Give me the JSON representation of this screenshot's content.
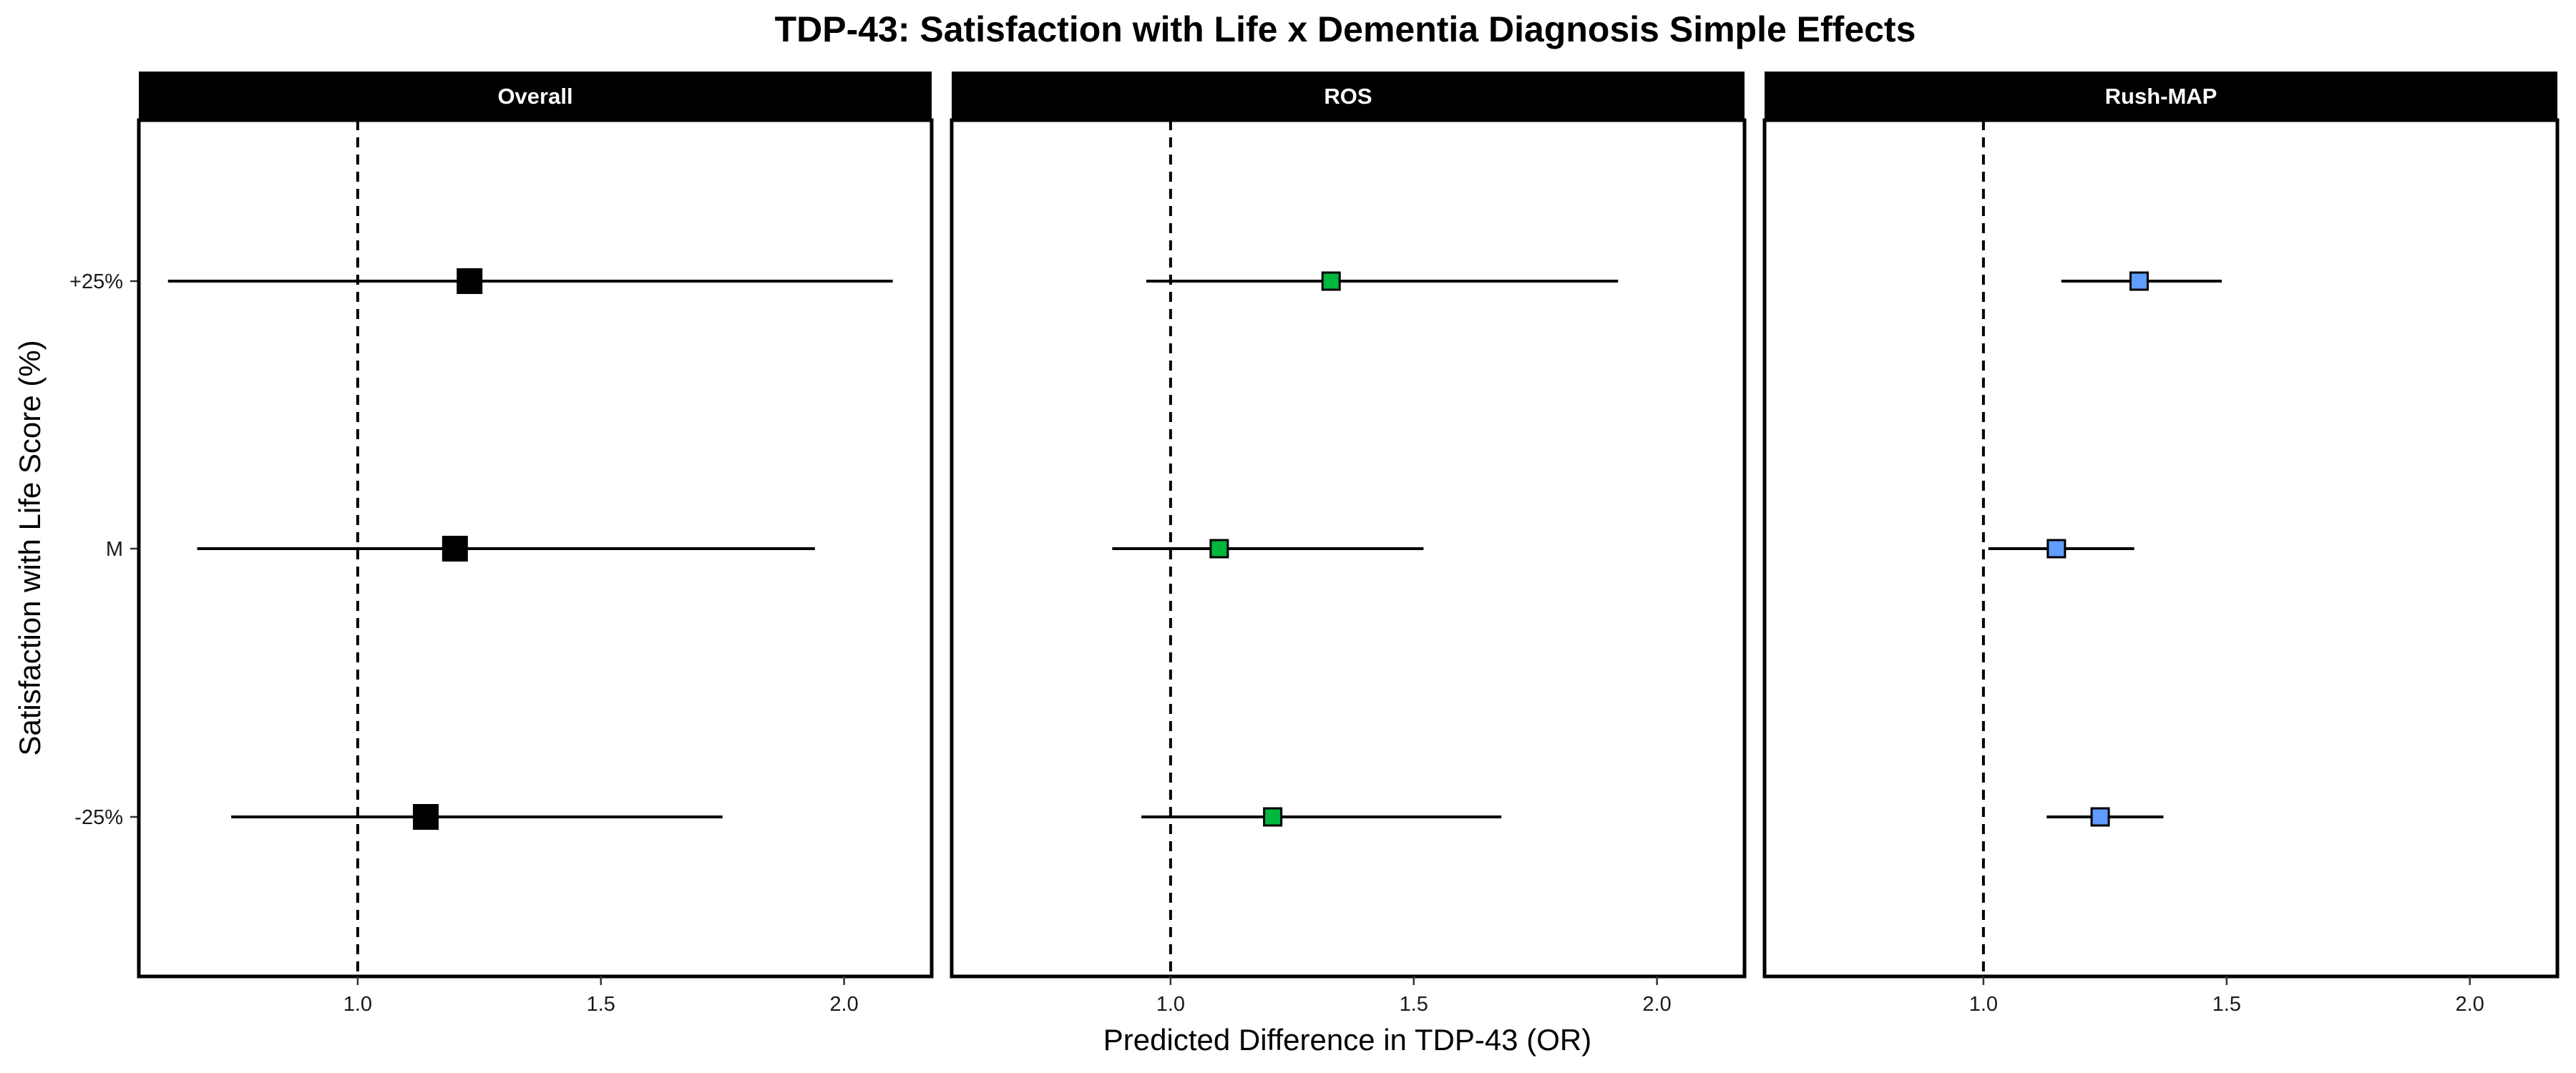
{
  "chart_data": {
    "type": "forest",
    "title": "TDP-43: Satisfaction with Life x Dementia Diagnosis Simple Effects",
    "xlabel": "Predicted Difference in TDP-43 (OR)",
    "ylabel": "Satisfaction with Life Score (%)",
    "xlim": [
      0.55,
      2.18
    ],
    "x_ticks": [
      "1.0",
      "1.5",
      "2.0"
    ],
    "x_tick_values": [
      1.0,
      1.5,
      2.0
    ],
    "reference_line": 1.0,
    "categories": [
      "+25%",
      "M",
      "-25%"
    ],
    "grid": false,
    "panels": [
      {
        "name": "Overall",
        "color": "#000000",
        "marker": "large",
        "points": [
          {
            "category": "+25%",
            "estimate": 1.23,
            "lower": 0.61,
            "upper": 2.1
          },
          {
            "category": "M",
            "estimate": 1.2,
            "lower": 0.67,
            "upper": 1.94
          },
          {
            "category": "-25%",
            "estimate": 1.14,
            "lower": 0.74,
            "upper": 1.75
          }
        ]
      },
      {
        "name": "ROS",
        "color": "#00b73e",
        "marker": "small",
        "points": [
          {
            "category": "+25%",
            "estimate": 1.33,
            "lower": 0.95,
            "upper": 1.92
          },
          {
            "category": "M",
            "estimate": 1.1,
            "lower": 0.88,
            "upper": 1.52
          },
          {
            "category": "-25%",
            "estimate": 1.21,
            "lower": 0.94,
            "upper": 1.68
          }
        ]
      },
      {
        "name": "Rush-MAP",
        "color": "#619cff",
        "marker": "small",
        "points": [
          {
            "category": "+25%",
            "estimate": 1.32,
            "lower": 1.16,
            "upper": 1.49
          },
          {
            "category": "M",
            "estimate": 1.15,
            "lower": 1.01,
            "upper": 1.31
          },
          {
            "category": "-25%",
            "estimate": 1.24,
            "lower": 1.13,
            "upper": 1.37
          }
        ]
      }
    ]
  }
}
